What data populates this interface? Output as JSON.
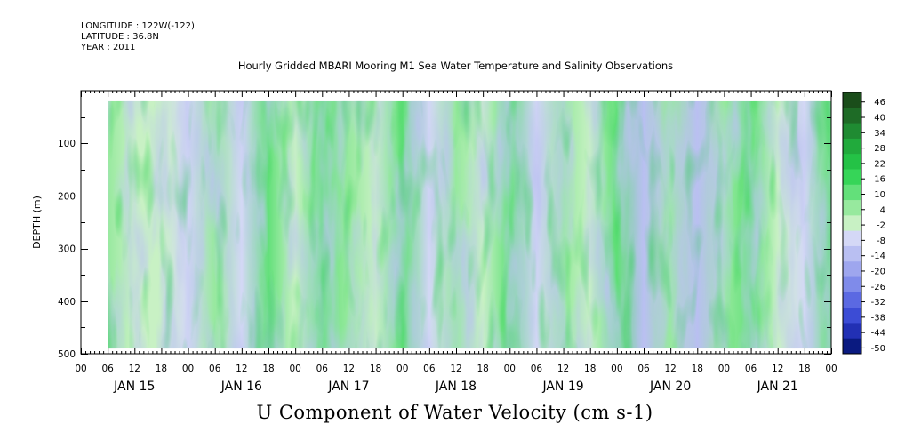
{
  "header": {
    "longitude": "LONGITUDE : 122W(-122)",
    "latitude": "LATITUDE : 36.8N",
    "year": "YEAR : 2011"
  },
  "plot_title": "Hourly Gridded MBARI Mooring M1 Sea Water Temperature and Salinity Observations",
  "variable_title": "U Component of Water Velocity (cm s-1)",
  "chart_data": {
    "type": "heatmap",
    "title": "Hourly Gridded MBARI Mooring M1 Sea Water Temperature and Salinity Observations",
    "xlabel": "",
    "ylabel": "DEPTH (m)",
    "colorbar_label": "U Component of Water Velocity (cm s-1)",
    "units": "cm s-1",
    "y_reversed": true,
    "ylim": [
      500,
      0
    ],
    "y_ticks": [
      100,
      200,
      300,
      400,
      500
    ],
    "y_tick_labels": [
      "100",
      "200",
      "300",
      "400",
      "500"
    ],
    "x_range": [
      "2011-01-15T00:00",
      "2011-01-22T00:00"
    ],
    "x_hour_ticks": [
      "00",
      "06",
      "12",
      "18",
      "00",
      "06",
      "12",
      "18",
      "00",
      "06",
      "12",
      "18",
      "00",
      "06",
      "12",
      "18",
      "00",
      "06",
      "12",
      "18",
      "00",
      "06",
      "12",
      "18",
      "00",
      "06",
      "12",
      "18",
      "00"
    ],
    "x_day_labels": [
      "JAN 15",
      "JAN 16",
      "JAN 17",
      "JAN 18",
      "JAN 19",
      "JAN 20",
      "JAN 21"
    ],
    "data_extent": {
      "time_start": "2011-01-15T06:00",
      "time_end": "2011-01-21T24:00",
      "depth_top": 20,
      "depth_bottom": 490
    },
    "contour_levels": [
      -50,
      -44,
      -38,
      -32,
      -26,
      -20,
      -14,
      -8,
      -2,
      4,
      10,
      16,
      22,
      28,
      34,
      40,
      46
    ],
    "colorbar_ticks": [
      "46",
      "40",
      "34",
      "28",
      "22",
      "16",
      "10",
      "4",
      "-2",
      "-8",
      "-14",
      "-20",
      "-26",
      "-32",
      "-38",
      "-44",
      "-50"
    ],
    "colorbar_colors": [
      "#1a4d1a",
      "#1e6b26",
      "#1f8b32",
      "#21aa3c",
      "#24c246",
      "#36d558",
      "#63e07a",
      "#97e99e",
      "#c8f1c4",
      "#d4d8f6",
      "#b9bff2",
      "#9ea6ee",
      "#7f8bea",
      "#5b69e2",
      "#3c4cd5",
      "#2230b4",
      "#0a1a80"
    ],
    "time_series_at_120m": {
      "time_hours": [
        6,
        12,
        18,
        24,
        30,
        36,
        42,
        48,
        54,
        60,
        66,
        72,
        78,
        84,
        90,
        96,
        102,
        108,
        114,
        120,
        126,
        132,
        138,
        144,
        150,
        156,
        162,
        168
      ],
      "u": [
        8,
        2,
        0,
        -4,
        6,
        -6,
        10,
        -2,
        12,
        4,
        -2,
        14,
        -6,
        6,
        0,
        12,
        -8,
        4,
        0,
        14,
        -10,
        4,
        -14,
        6,
        12,
        0,
        -4,
        10
      ]
    }
  }
}
